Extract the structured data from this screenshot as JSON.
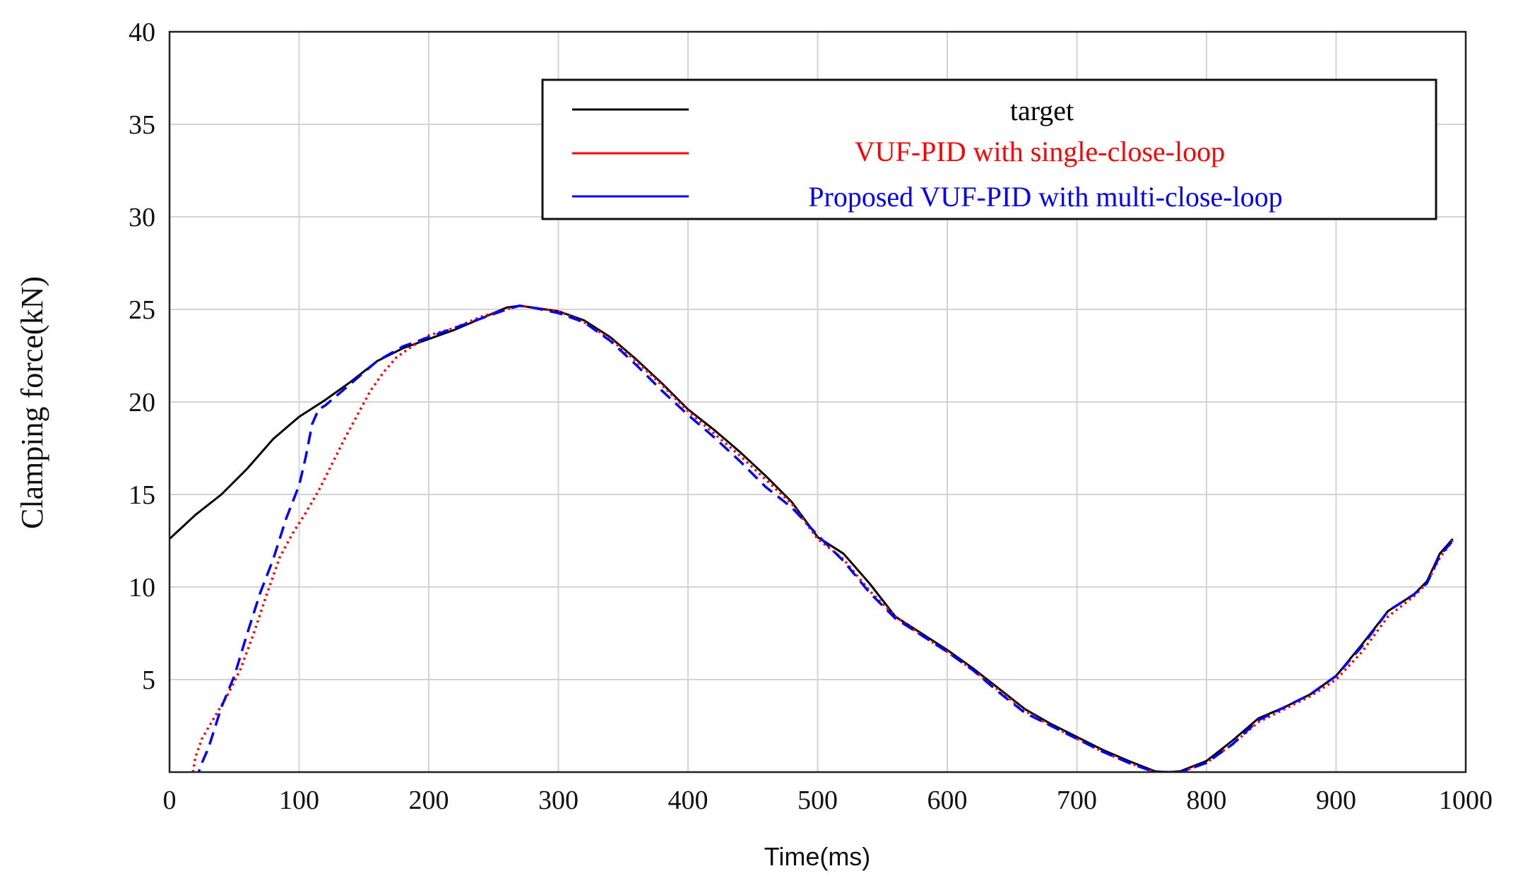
{
  "chart_data": {
    "type": "line",
    "title": "",
    "xlabel": "Time(ms)",
    "ylabel": "Clamping force(kN)",
    "xlim": [
      0,
      1000
    ],
    "ylim": [
      0,
      40
    ],
    "grid": true,
    "legend_position": "top-right",
    "x_ticks": [
      "0",
      "100",
      "200",
      "300",
      "400",
      "500",
      "600",
      "700",
      "800",
      "900",
      "1000"
    ],
    "y_ticks": [
      "5",
      "10",
      "15",
      "20",
      "25",
      "30",
      "35",
      "40"
    ],
    "series": [
      {
        "name": "target",
        "color": "#000000",
        "style": "solid",
        "x": [
          0,
          20,
          40,
          60,
          80,
          100,
          120,
          140,
          160,
          180,
          200,
          220,
          240,
          260,
          270,
          280,
          300,
          320,
          340,
          360,
          380,
          400,
          420,
          440,
          460,
          480,
          500,
          520,
          540,
          560,
          580,
          600,
          620,
          640,
          660,
          680,
          700,
          720,
          740,
          760,
          770,
          780,
          800,
          820,
          840,
          860,
          880,
          900,
          920,
          940,
          960,
          970,
          980,
          990
        ],
        "y": [
          12.6,
          13.9,
          15.0,
          16.4,
          18.0,
          19.2,
          20.1,
          21.1,
          22.2,
          22.9,
          23.4,
          23.9,
          24.5,
          25.1,
          25.2,
          25.1,
          24.9,
          24.4,
          23.5,
          22.3,
          21.0,
          19.6,
          18.5,
          17.3,
          16.0,
          14.6,
          12.7,
          11.8,
          10.2,
          8.4,
          7.5,
          6.6,
          5.6,
          4.5,
          3.4,
          2.6,
          1.9,
          1.2,
          0.6,
          0.05,
          0.0,
          0.05,
          0.6,
          1.7,
          2.9,
          3.5,
          4.2,
          5.2,
          6.9,
          8.7,
          9.6,
          10.3,
          11.8,
          12.6
        ]
      },
      {
        "name": "VUF-PID with single-close-loop",
        "color": "#ff0000",
        "style": "dotted",
        "x": [
          18,
          20,
          25,
          35,
          45,
          55,
          65,
          75,
          85,
          95,
          105,
          115,
          125,
          135,
          145,
          155,
          165,
          175,
          185,
          200,
          220,
          240,
          260,
          270,
          280,
          300,
          320,
          340,
          360,
          380,
          400,
          420,
          440,
          460,
          480,
          500,
          520,
          540,
          560,
          580,
          600,
          620,
          640,
          660,
          680,
          700,
          720,
          740,
          760,
          770,
          780,
          800,
          820,
          840,
          860,
          880,
          900,
          920,
          940,
          960,
          970,
          980,
          990
        ],
        "y": [
          0.0,
          0.8,
          1.8,
          3.0,
          4.2,
          5.6,
          7.5,
          9.6,
          11.6,
          12.9,
          14.0,
          15.2,
          16.6,
          18.0,
          19.3,
          20.6,
          21.6,
          22.4,
          22.9,
          23.6,
          24.0,
          24.6,
          25.0,
          25.2,
          25.1,
          24.9,
          24.3,
          23.4,
          22.2,
          20.9,
          19.5,
          18.3,
          17.1,
          15.8,
          14.5,
          12.6,
          11.5,
          9.8,
          8.4,
          7.4,
          6.5,
          5.5,
          4.4,
          3.3,
          2.5,
          1.8,
          1.1,
          0.5,
          0.0,
          0.0,
          0.0,
          0.5,
          1.5,
          2.7,
          3.4,
          4.1,
          5.0,
          6.5,
          8.4,
          9.5,
          10.2,
          11.6,
          12.5
        ]
      },
      {
        "name": "Proposed VUF-PID with multi-close-loop",
        "color": "#0000ff",
        "style": "dashed",
        "x": [
          20,
          25,
          30,
          40,
          50,
          60,
          70,
          80,
          90,
          100,
          105,
          110,
          115,
          120,
          140,
          160,
          180,
          200,
          220,
          240,
          260,
          270,
          280,
          300,
          320,
          340,
          360,
          380,
          400,
          420,
          440,
          460,
          480,
          500,
          520,
          540,
          560,
          580,
          600,
          620,
          640,
          660,
          680,
          700,
          720,
          740,
          760,
          770,
          780,
          800,
          820,
          840,
          860,
          880,
          900,
          920,
          940,
          960,
          970,
          980,
          990
        ],
        "y": [
          -0.5,
          0.5,
          1.3,
          3.5,
          5.2,
          7.5,
          9.7,
          11.5,
          13.7,
          15.5,
          17.0,
          18.8,
          19.6,
          19.8,
          21.0,
          22.2,
          23.0,
          23.5,
          24.0,
          24.5,
          25.0,
          25.2,
          25.1,
          24.8,
          24.3,
          23.3,
          22.0,
          20.6,
          19.3,
          18.1,
          16.8,
          15.4,
          14.3,
          12.8,
          11.4,
          9.7,
          8.3,
          7.4,
          6.5,
          5.5,
          4.3,
          3.2,
          2.5,
          1.8,
          1.1,
          0.5,
          0.0,
          0.0,
          0.0,
          0.5,
          1.5,
          2.8,
          3.5,
          4.2,
          5.2,
          6.8,
          8.7,
          9.6,
          10.2,
          11.7,
          12.5
        ]
      }
    ]
  }
}
